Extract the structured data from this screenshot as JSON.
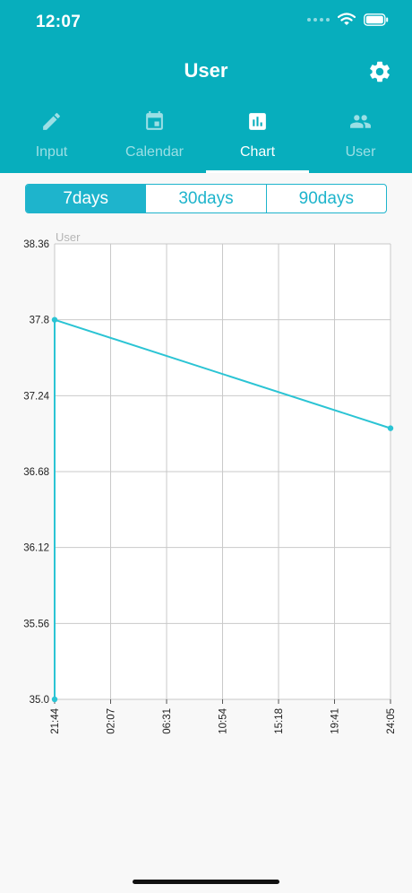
{
  "status_bar": {
    "time": "12:07"
  },
  "header": {
    "title": "User"
  },
  "icons": {
    "settings": "gear-icon",
    "wifi": "wifi-icon",
    "battery": "battery-icon",
    "input": "pencil-icon",
    "calendar": "calendar-icon",
    "chart": "bar-chart-icon",
    "user": "users-icon"
  },
  "tabs": [
    {
      "label": "Input",
      "active": false
    },
    {
      "label": "Calendar",
      "active": false
    },
    {
      "label": "Chart",
      "active": true
    },
    {
      "label": "User",
      "active": false
    }
  ],
  "range_selector": {
    "options": [
      "7days",
      "30days",
      "90days"
    ],
    "selected": "7days"
  },
  "colors": {
    "header": "#07aebd",
    "accent": "#1eb4cc",
    "line": "#2bc4d4",
    "grid": "#c9c9c9"
  },
  "chart_data": {
    "type": "line",
    "legend": "User",
    "y_ticks": [
      "38.36",
      "37.8",
      "37.24",
      "36.68",
      "36.12",
      "35.56",
      "35.0"
    ],
    "x_ticks": [
      "21:44",
      "02:07",
      "06:31",
      "10:54",
      "15:18",
      "19:41",
      "24:05"
    ],
    "ylim": [
      35.0,
      38.36
    ],
    "grid": true,
    "series": [
      {
        "points": [
          {
            "x": "21:44",
            "y": 35.0
          },
          {
            "x": "21:44",
            "y": 37.8
          },
          {
            "x": "24:05",
            "y": 37.0
          }
        ]
      }
    ]
  }
}
